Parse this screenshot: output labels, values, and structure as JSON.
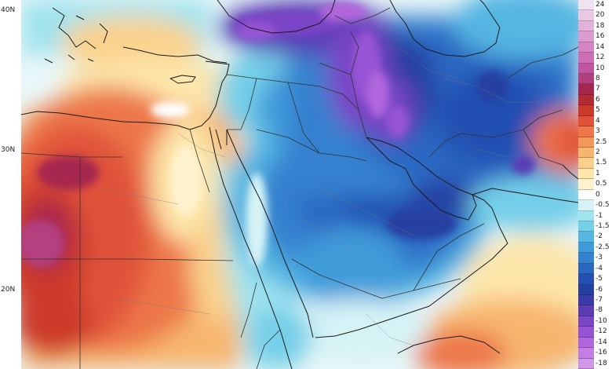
{
  "latitude_labels": [
    "40N",
    "30N",
    "20N"
  ],
  "legend": [
    {
      "label": "24",
      "color": "#efe3ef"
    },
    {
      "label": "20",
      "color": "#e8c8e2"
    },
    {
      "label": "18",
      "color": "#e3b2d8"
    },
    {
      "label": "16",
      "color": "#dc9ccf"
    },
    {
      "label": "14",
      "color": "#d585c4"
    },
    {
      "label": "12",
      "color": "#cc6db6"
    },
    {
      "label": "10",
      "color": "#c2559f"
    },
    {
      "label": "8",
      "color": "#b43f7f"
    },
    {
      "label": "7",
      "color": "#a7264f"
    },
    {
      "label": "6",
      "color": "#b22a32"
    },
    {
      "label": "5",
      "color": "#cc3a2a"
    },
    {
      "label": "4",
      "color": "#e0523a"
    },
    {
      "label": "3",
      "color": "#ed7748"
    },
    {
      "label": "2.5",
      "color": "#f39957"
    },
    {
      "label": "2",
      "color": "#f7b66e"
    },
    {
      "label": "1.5",
      "color": "#fad18c"
    },
    {
      "label": "1",
      "color": "#fde6aa"
    },
    {
      "label": "0.5",
      "color": "#fff3cf"
    },
    {
      "label": "0",
      "color": "#ffffff"
    },
    {
      "label": "-0.5",
      "color": "#d5f3f6"
    },
    {
      "label": "-1",
      "color": "#9fe3ee"
    },
    {
      "label": "-1.5",
      "color": "#74cfe8"
    },
    {
      "label": "-2",
      "color": "#55b6e2"
    },
    {
      "label": "-2.5",
      "color": "#3f9bd9"
    },
    {
      "label": "-3",
      "color": "#3481cf"
    },
    {
      "label": "-4",
      "color": "#2a67c2"
    },
    {
      "label": "-5",
      "color": "#2350b2"
    },
    {
      "label": "-6",
      "color": "#2540a2"
    },
    {
      "label": "-7",
      "color": "#3a3aa8"
    },
    {
      "label": "-8",
      "color": "#5a3cb5"
    },
    {
      "label": "-10",
      "color": "#7a45c6"
    },
    {
      "label": "-12",
      "color": "#9654d4"
    },
    {
      "label": "-14",
      "color": "#b066dc"
    },
    {
      "label": "-16",
      "color": "#c27ee2"
    },
    {
      "label": "-18",
      "color": "#d097e8"
    }
  ],
  "colors": {
    "ocean_border": "#1a1a1a",
    "country_border": "#333333"
  }
}
